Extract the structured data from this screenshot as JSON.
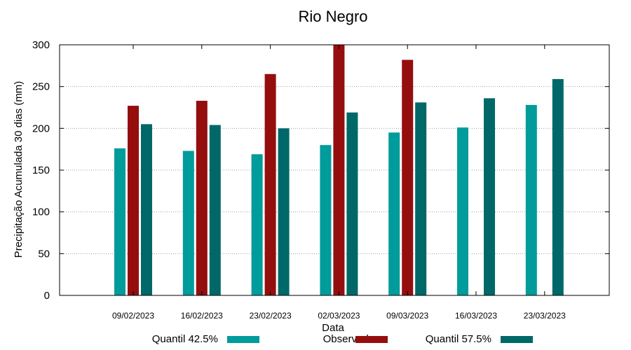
{
  "chart_data": {
    "type": "bar",
    "title": "Rio Negro",
    "xlabel": "Data",
    "ylabel": "Precipitação Acumulada 30 dias (mm)",
    "ylim": [
      0,
      300
    ],
    "yticks": [
      0,
      50,
      100,
      150,
      200,
      250,
      300
    ],
    "grid": true,
    "legend_position": "bottom",
    "categories": [
      "09/02/2023",
      "16/02/2023",
      "23/02/2023",
      "02/03/2023",
      "09/03/2023",
      "16/03/2023",
      "23/03/2023"
    ],
    "series": [
      {
        "name": "Quantil 42.5%",
        "color": "#009b9b",
        "values": [
          176,
          173,
          169,
          180,
          195,
          201,
          228
        ]
      },
      {
        "name": "Observado",
        "color": "#950e0e",
        "values": [
          227,
          233,
          265,
          300,
          282,
          null,
          null
        ]
      },
      {
        "name": "Quantil 57.5%",
        "color": "#006868",
        "values": [
          205,
          204,
          200,
          219,
          231,
          236,
          259
        ]
      }
    ]
  }
}
